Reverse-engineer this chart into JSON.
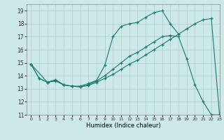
{
  "xlabel": "Humidex (Indice chaleur)",
  "bg_color": "#cce8e8",
  "line_color": "#1a7a6e",
  "grid_color": "#aacccc",
  "xlim": [
    -0.5,
    23
  ],
  "ylim": [
    11,
    19.5
  ],
  "xticks": [
    0,
    1,
    2,
    3,
    4,
    5,
    6,
    7,
    8,
    9,
    10,
    11,
    12,
    13,
    14,
    15,
    16,
    17,
    18,
    19,
    20,
    21,
    22,
    23
  ],
  "yticks": [
    11,
    12,
    13,
    14,
    15,
    16,
    17,
    18,
    19
  ],
  "curves": [
    {
      "x": [
        0,
        1,
        2,
        3,
        4,
        5,
        6,
        7,
        8,
        9,
        10,
        11,
        12,
        13,
        14,
        15,
        16,
        17,
        18
      ],
      "y": [
        14.9,
        13.8,
        13.5,
        13.7,
        13.3,
        13.2,
        13.2,
        13.4,
        13.65,
        14.8,
        17.0,
        17.8,
        18.0,
        18.1,
        18.5,
        18.85,
        19.0,
        18.0,
        17.2
      ]
    },
    {
      "x": [
        0,
        2,
        3,
        4,
        5,
        6,
        7,
        8,
        9,
        10,
        11,
        12,
        13,
        14,
        15,
        16,
        17,
        18,
        19,
        20,
        21,
        22,
        23
      ],
      "y": [
        14.9,
        13.5,
        13.65,
        13.3,
        13.2,
        13.15,
        13.3,
        13.6,
        14.0,
        14.5,
        15.0,
        15.5,
        15.8,
        16.2,
        16.6,
        17.0,
        17.1,
        17.0,
        15.3,
        13.3,
        12.0,
        11.0,
        11.0
      ]
    },
    {
      "x": [
        0,
        1,
        2,
        3,
        4,
        5,
        6,
        7,
        8,
        9,
        10,
        11,
        12,
        13,
        14,
        15,
        16,
        17,
        18,
        19,
        20,
        21,
        22,
        23
      ],
      "y": [
        14.9,
        13.8,
        13.5,
        13.6,
        13.3,
        13.2,
        13.15,
        13.25,
        13.5,
        13.8,
        14.1,
        14.5,
        14.9,
        15.2,
        15.6,
        16.0,
        16.4,
        16.8,
        17.2,
        17.6,
        18.0,
        18.3,
        18.4,
        11.0
      ]
    }
  ]
}
